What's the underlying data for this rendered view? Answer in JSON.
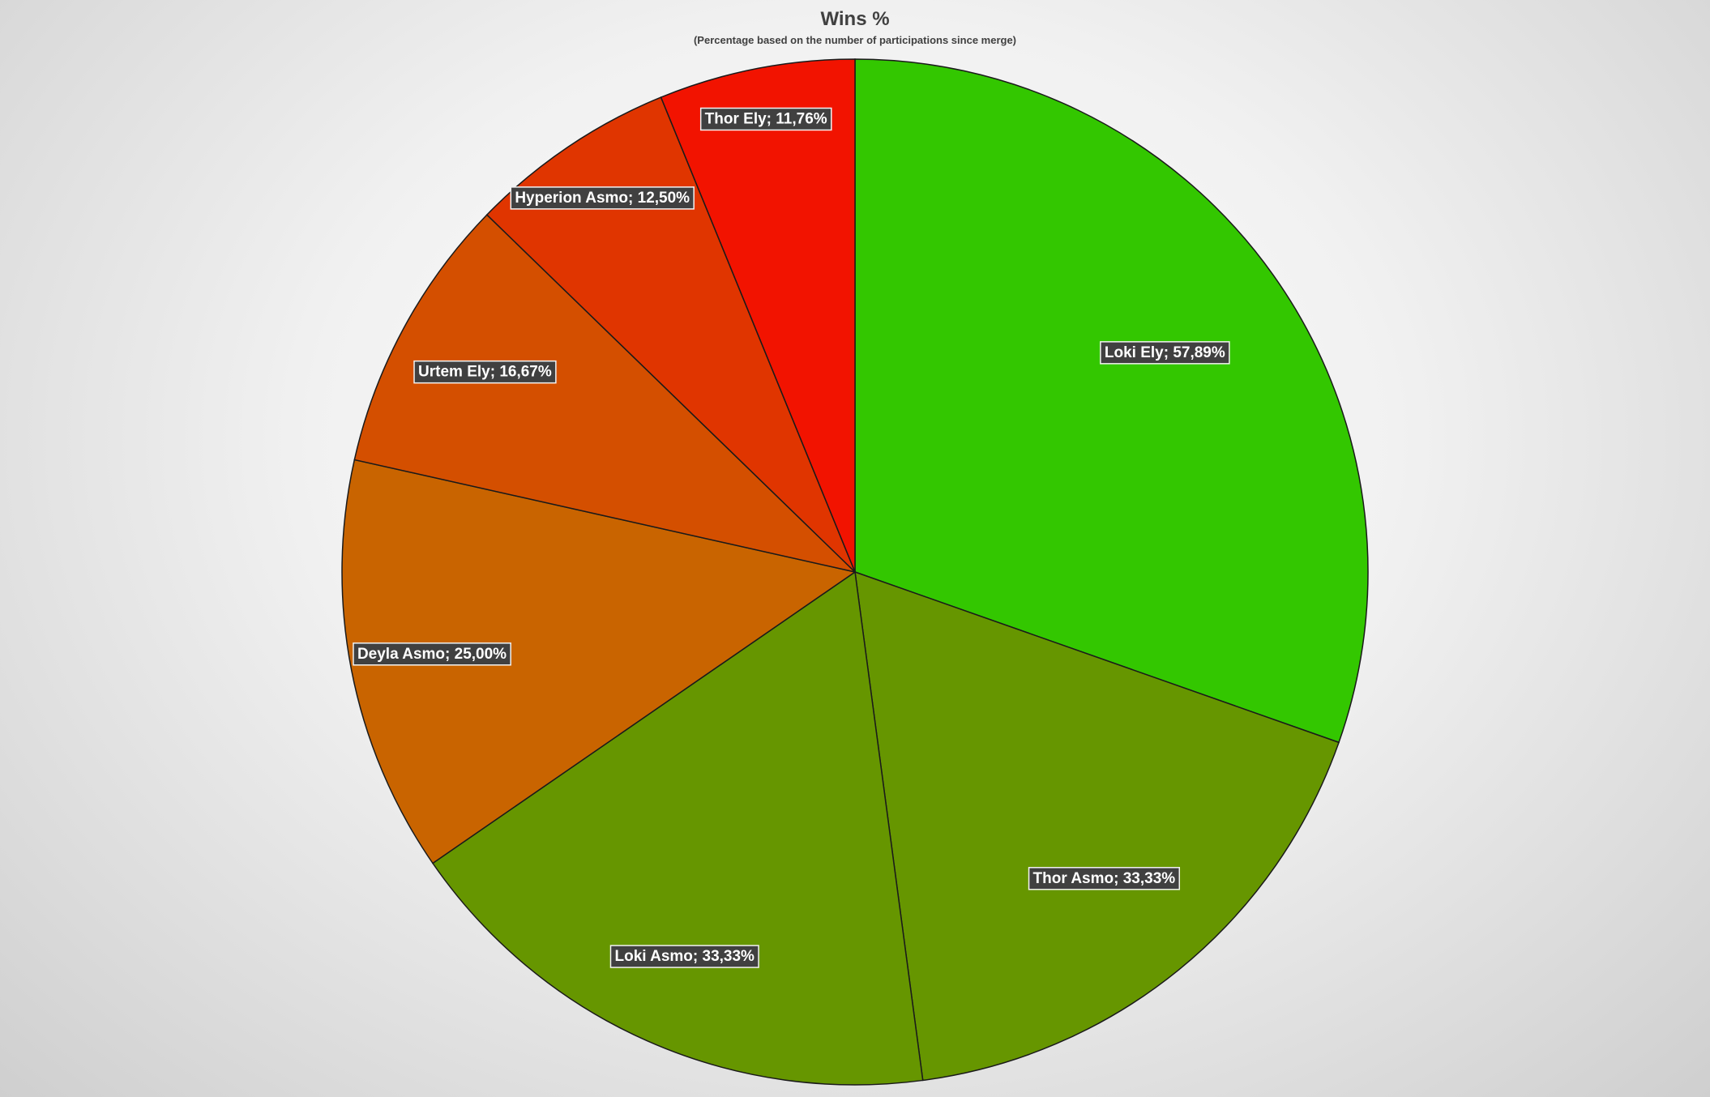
{
  "chart_data": {
    "type": "pie",
    "title": "Wins %",
    "subtitle": "(Percentage based on the number of participations since merge)",
    "slices": [
      {
        "label": "Loki Ely; 57,89%",
        "name": "Loki Ely",
        "value": 57.89,
        "color": "#33c700"
      },
      {
        "label": "Thor Asmo; 33,33%",
        "name": "Thor Asmo",
        "value": 33.33,
        "color": "#669600"
      },
      {
        "label": "Loki Asmo; 33,33%",
        "name": "Loki Asmo",
        "value": 33.33,
        "color": "#669600"
      },
      {
        "label": "Deyla Asmo; 25,00%",
        "name": "Deyla Asmo",
        "value": 25.0,
        "color": "#c96400"
      },
      {
        "label": "Urtem Ely; 16,67%",
        "name": "Urtem Ely",
        "value": 16.67,
        "color": "#d44f00"
      },
      {
        "label": "Hyperion Asmo; 12,50%",
        "name": "Hyperion Asmo",
        "value": 12.5,
        "color": "#e03500"
      },
      {
        "label": "Thor Ely; 11,76%",
        "name": "Thor Ely",
        "value": 11.76,
        "color": "#f21300"
      }
    ],
    "start_angle": "12 o'clock",
    "direction": "clockwise",
    "legend": "none",
    "data_labels": "on"
  }
}
